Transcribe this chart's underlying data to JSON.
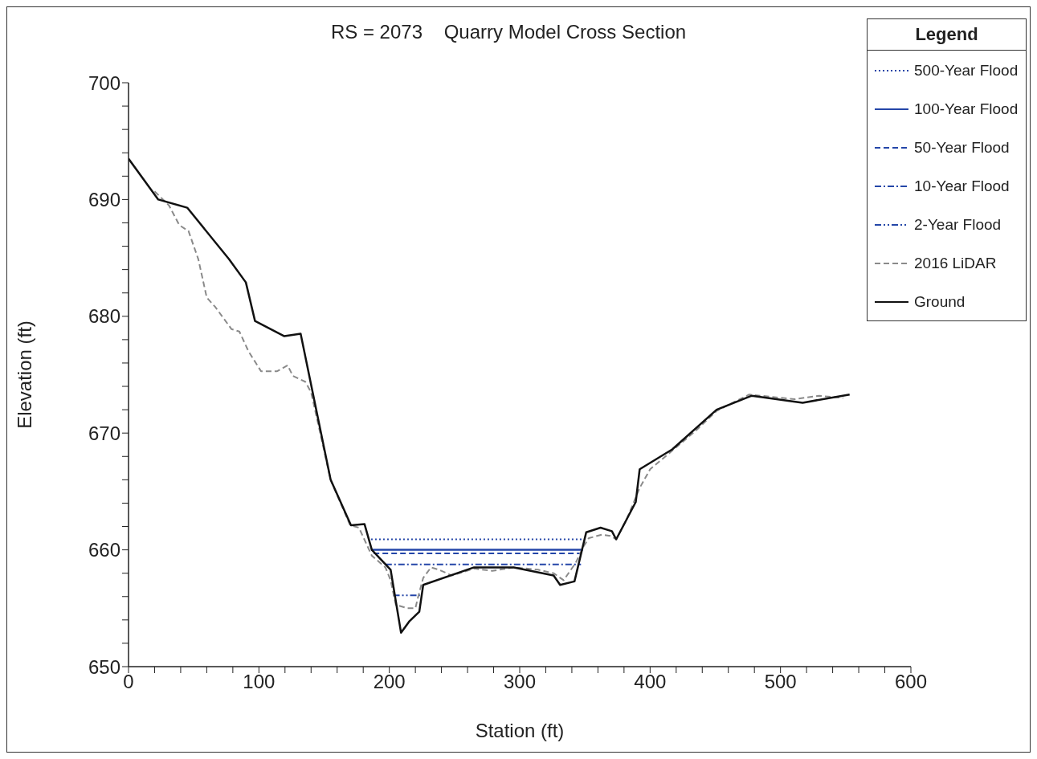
{
  "chart_data": {
    "type": "line",
    "title": "RS = 2073    Quarry Model Cross Section",
    "xlabel": "Station (ft)",
    "ylabel": "Elevation (ft)",
    "legend_title": "Legend",
    "legend": "top right",
    "grid": false,
    "marker": "none",
    "xlim": [
      0,
      600
    ],
    "xticks": [
      0,
      {
        "value": 20,
        "label": null
      },
      {
        "value": 40,
        "label": null
      },
      {
        "value": 60,
        "label": null
      },
      {
        "value": 80,
        "label": null
      },
      100,
      {
        "value": 120,
        "label": null
      },
      {
        "value": 140,
        "label": null
      },
      {
        "value": 160,
        "label": null
      },
      {
        "value": 180,
        "label": null
      },
      200,
      {
        "value": 220,
        "label": null
      },
      {
        "value": 240,
        "label": null
      },
      {
        "value": 260,
        "label": null
      },
      {
        "value": 280,
        "label": null
      },
      300,
      {
        "value": 320,
        "label": null
      },
      {
        "value": 340,
        "label": null
      },
      {
        "value": 360,
        "label": null
      },
      {
        "value": 380,
        "label": null
      },
      400,
      {
        "value": 420,
        "label": null
      },
      {
        "value": 440,
        "label": null
      },
      {
        "value": 460,
        "label": null
      },
      {
        "value": 480,
        "label": null
      },
      500,
      {
        "value": 520,
        "label": null
      },
      {
        "value": 540,
        "label": null
      },
      {
        "value": 560,
        "label": null
      },
      {
        "value": 580,
        "label": null
      },
      600
    ],
    "ylim": [
      650,
      700
    ],
    "yticks": [
      650,
      {
        "value": 652,
        "label": null
      },
      {
        "value": 654,
        "label": null
      },
      {
        "value": 656,
        "label": null
      },
      {
        "value": 658,
        "label": null
      },
      660,
      {
        "value": 662,
        "label": null
      },
      {
        "value": 664,
        "label": null
      },
      {
        "value": 666,
        "label": null
      },
      {
        "value": 668,
        "label": null
      },
      670,
      {
        "value": 672,
        "label": null
      },
      {
        "value": 674,
        "label": null
      },
      {
        "value": 676,
        "label": null
      },
      {
        "value": 678,
        "label": null
      },
      680,
      {
        "value": 682,
        "label": null
      },
      {
        "value": 684,
        "label": null
      },
      {
        "value": 686,
        "label": null
      },
      {
        "value": 688,
        "label": null
      },
      690,
      {
        "value": 692,
        "label": null
      },
      {
        "value": 694,
        "label": null
      },
      {
        "value": 696,
        "label": null
      },
      {
        "value": 698,
        "label": null
      },
      700
    ],
    "series": [
      {
        "name": "500-Year Flood",
        "color": "#2446a8",
        "line_style": "dotted",
        "x": [
          186,
          349
        ],
        "values": [
          660.9,
          660.9
        ]
      },
      {
        "name": "100-Year Flood",
        "color": "#2446a8",
        "line_style": "solid",
        "x": [
          186,
          348.5
        ],
        "values": [
          660.0,
          660.0
        ]
      },
      {
        "name": "50-Year Flood",
        "color": "#2446a8",
        "line_style": "dashed",
        "x": [
          188,
          347
        ],
        "values": [
          659.7,
          659.7
        ]
      },
      {
        "name": "10-Year Flood",
        "color": "#2446a8",
        "line_style": "dashdot",
        "x": [
          197,
          347
        ],
        "values": [
          658.75,
          658.75
        ]
      },
      {
        "name": "2-Year Flood",
        "color": "#2446a8",
        "line_style": "dashdotdot",
        "x": [
          203,
          223.5
        ],
        "values": [
          656.1,
          656.1
        ]
      },
      {
        "name": "2016 LiDAR",
        "color": "#8a8a8a",
        "line_style": "dashed",
        "x": [
          20,
          31,
          39,
          46,
          53.5,
          60,
          66.5,
          79,
          85,
          92,
          101.6,
          114,
          122,
          126,
          135.5,
          140,
          155,
          170,
          176.7,
          186.6,
          197,
          201,
          205,
          213.7,
          220,
          221.7,
          226,
          232,
          238,
          248,
          265,
          279,
          295.5,
          314,
          326,
          333.7,
          343,
          349,
          353,
          363,
          369.5,
          374,
          382,
          392,
          400,
          410.7,
          435,
          451,
          476,
          511,
          529.6,
          548
        ],
        "values": [
          690.7,
          689.5,
          687.8,
          687.3,
          684.9,
          681.6,
          680.8,
          678.9,
          678.7,
          677,
          675.3,
          675.3,
          675.8,
          674.9,
          674.4,
          673.5,
          666,
          662.1,
          661.9,
          659.5,
          658.5,
          657.4,
          655.3,
          655,
          655,
          655.8,
          657.6,
          658.5,
          658.3,
          657.8,
          658.4,
          658.2,
          658.5,
          658.3,
          658,
          657.4,
          658.9,
          660.3,
          661,
          661.3,
          661.2,
          660.9,
          662.6,
          665.3,
          666.9,
          667.9,
          670.2,
          671.9,
          673.3,
          672.9,
          673.2,
          673
        ]
      },
      {
        "name": "Ground",
        "color": "#111111",
        "line_style": "solid",
        "x": [
          0,
          22.8,
          45,
          77,
          90,
          97,
          119.5,
          132,
          155,
          170.6,
          181,
          186.6,
          201,
          209,
          215.5,
          223,
          226,
          265,
          295.5,
          326,
          331,
          342,
          351,
          362,
          370.7,
          374,
          389,
          392,
          417,
          451,
          478,
          517,
          553
        ],
        "values": [
          693.5,
          690,
          689.3,
          684.9,
          682.9,
          679.6,
          678.3,
          678.5,
          666,
          662.1,
          662.2,
          660,
          658.3,
          652.9,
          653.9,
          654.7,
          657,
          658.5,
          658.5,
          657.8,
          657,
          657.3,
          661.5,
          661.9,
          661.6,
          660.9,
          664.1,
          666.9,
          668.6,
          672,
          673.2,
          672.6,
          673.3
        ]
      }
    ]
  }
}
